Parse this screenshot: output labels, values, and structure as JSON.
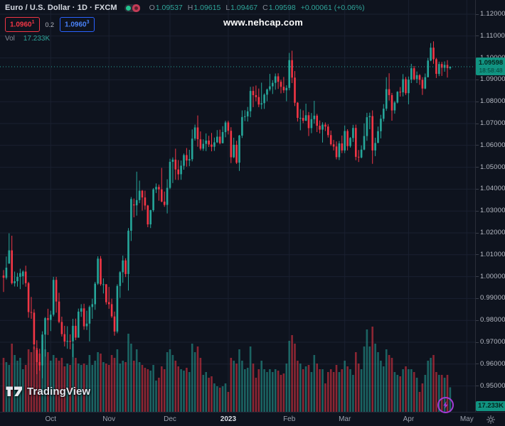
{
  "header": {
    "title": "Euro / U.S. Dollar · 1D · FXCM",
    "ohlc": {
      "o_label": "O",
      "o": "1.09537",
      "h_label": "H",
      "h": "1.09615",
      "l_label": "L",
      "l": "1.09467",
      "c_label": "C",
      "c": "1.09598",
      "change": "+0.00061 (+0.06%)"
    },
    "bid": {
      "value": "1.0960",
      "sup": "1"
    },
    "spread": "0.2",
    "ask": {
      "value": "1.0960",
      "sup": "3"
    },
    "vol_label": "Vol",
    "vol_value": "17.233K"
  },
  "watermark": "www.nehcap.com",
  "price_scale": {
    "last_price": "1.09598",
    "countdown": "18:58:48",
    "volume_badge": "17.233K"
  },
  "logo": {
    "text": "TradingView"
  },
  "colors": {
    "background": "#0e131e",
    "grid": "#1a2030",
    "up": "#26a69a",
    "down": "#f23645",
    "vol_up": "rgba(38,166,154,0.55)",
    "vol_down": "rgba(242,54,69,0.55)",
    "badge_bg": "#119482",
    "badge_text": "#04231c",
    "axis_text": "#b8bcc6",
    "bid": "#f23645",
    "ask": "#2962ff",
    "boost": "#a43bd6"
  },
  "chart_data": {
    "type": "candlestick",
    "symbol": "EUR/USD",
    "interval": "1D",
    "exchange": "FXCM",
    "price_axis": {
      "max": 1.12,
      "min": 0.95,
      "step": 0.01,
      "labels": [
        "1.12000",
        "1.11000",
        "1.10000",
        "1.09000",
        "1.08000",
        "1.07000",
        "1.06000",
        "1.05000",
        "1.04000",
        "1.03000",
        "1.02000",
        "1.01000",
        "1.00000",
        "0.99000",
        "0.98000",
        "0.97000",
        "0.96000",
        "0.95000"
      ]
    },
    "time_axis": {
      "months": [
        {
          "label": "Oct",
          "index": 17
        },
        {
          "label": "Nov",
          "index": 38
        },
        {
          "label": "Dec",
          "index": 60
        },
        {
          "label": "2023",
          "index": 81,
          "year": true
        },
        {
          "label": "Feb",
          "index": 103
        },
        {
          "label": "Mar",
          "index": 123
        },
        {
          "label": "Apr",
          "index": 146
        },
        {
          "label": "May",
          "index": 167
        }
      ]
    },
    "last_price": 1.09598,
    "volume_unit": "K",
    "candles": [
      [
        1.0005,
        1.003,
        0.993,
        0.9995,
        38
      ],
      [
        0.9995,
        1.0092,
        0.9987,
        1.0041,
        35
      ],
      [
        1.006,
        1.0198,
        1.0058,
        1.012,
        33
      ],
      [
        1.012,
        1.0187,
        0.9964,
        0.997,
        48
      ],
      [
        0.997,
        1.0023,
        0.9955,
        0.9979,
        40
      ],
      [
        0.9979,
        1.0017,
        0.9954,
        0.9999,
        36
      ],
      [
        0.9999,
        1.0036,
        0.9943,
        1.0016,
        38
      ],
      [
        1.0002,
        1.0029,
        0.9964,
        1.0023,
        30
      ],
      [
        1.0023,
        1.005,
        0.9954,
        0.997,
        33
      ],
      [
        0.997,
        0.9976,
        0.9812,
        0.9838,
        44
      ],
      [
        0.9838,
        0.9907,
        0.9807,
        0.9835,
        42
      ],
      [
        0.9835,
        0.9851,
        0.9667,
        0.969,
        46
      ],
      [
        0.9665,
        0.9709,
        0.9554,
        0.9609,
        45
      ],
      [
        0.9609,
        0.967,
        0.957,
        0.9594,
        41
      ],
      [
        0.9594,
        0.975,
        0.9535,
        0.9735,
        50
      ],
      [
        0.9735,
        0.9815,
        0.9634,
        0.981,
        44
      ],
      [
        0.981,
        0.9853,
        0.9733,
        0.9802,
        42
      ],
      [
        0.9802,
        0.9844,
        0.9751,
        0.9826,
        36
      ],
      [
        0.9826,
        0.9999,
        0.9818,
        0.9985,
        40
      ],
      [
        0.9985,
        0.9999,
        0.9835,
        0.9886,
        38
      ],
      [
        0.9886,
        0.9926,
        0.9787,
        0.9793,
        36
      ],
      [
        0.9793,
        0.9817,
        0.9726,
        0.9737,
        38
      ],
      [
        0.9737,
        0.9775,
        0.9681,
        0.9703,
        32
      ],
      [
        0.9703,
        0.9773,
        0.967,
        0.9706,
        34
      ],
      [
        0.9706,
        0.9736,
        0.9668,
        0.9704,
        33
      ],
      [
        0.9704,
        0.9807,
        0.9632,
        0.9775,
        48
      ],
      [
        0.9775,
        0.9808,
        0.9709,
        0.9721,
        38
      ],
      [
        0.9721,
        0.9854,
        0.9721,
        0.984,
        34
      ],
      [
        0.984,
        0.9874,
        0.9816,
        0.9855,
        33
      ],
      [
        0.9855,
        0.9876,
        0.9757,
        0.9773,
        34
      ],
      [
        0.9773,
        0.9844,
        0.9756,
        0.9785,
        33
      ],
      [
        0.9785,
        0.9868,
        0.9704,
        0.9861,
        40
      ],
      [
        0.9861,
        0.9899,
        0.9807,
        0.9874,
        33
      ],
      [
        0.9874,
        0.9976,
        0.9848,
        0.9968,
        36
      ],
      [
        0.9968,
        1.0093,
        0.9962,
        1.0082,
        42
      ],
      [
        1.0082,
        1.0094,
        0.9958,
        0.9965,
        41
      ],
      [
        0.9965,
        0.9992,
        0.9923,
        0.9965,
        35
      ],
      [
        0.9965,
        0.9966,
        0.9872,
        0.9883,
        34
      ],
      [
        0.9883,
        0.9953,
        0.9853,
        0.9874,
        33
      ],
      [
        0.9874,
        0.9899,
        0.9811,
        0.9818,
        40
      ],
      [
        0.9818,
        0.984,
        0.973,
        0.9749,
        38
      ],
      [
        0.9749,
        0.9965,
        0.9741,
        0.9957,
        44
      ],
      [
        0.9957,
        1.0025,
        0.9903,
        1.002,
        34
      ],
      [
        1.002,
        1.0096,
        0.9972,
        1.0074,
        36
      ],
      [
        1.0074,
        1.0084,
        0.9998,
        1.0012,
        35
      ],
      [
        1.0012,
        1.0222,
        0.9936,
        1.021,
        55
      ],
      [
        1.021,
        1.0364,
        1.0163,
        1.0355,
        48
      ],
      [
        1.033,
        1.0357,
        1.0271,
        1.0326,
        36
      ],
      [
        1.0326,
        1.048,
        1.0279,
        1.035,
        44
      ],
      [
        1.035,
        1.0439,
        1.0336,
        1.0393,
        35
      ],
      [
        1.0393,
        1.0396,
        1.0302,
        1.0362,
        33
      ],
      [
        1.0362,
        1.0393,
        1.0306,
        1.0325,
        31
      ],
      [
        1.0325,
        1.0328,
        1.0226,
        1.0239,
        30
      ],
      [
        1.0239,
        1.0306,
        1.0222,
        1.0304,
        29
      ],
      [
        1.0304,
        1.0405,
        1.0296,
        1.0399,
        33
      ],
      [
        1.0399,
        1.0426,
        1.0382,
        1.041,
        22
      ],
      [
        1.041,
        1.0421,
        1.0347,
        1.0399,
        24
      ],
      [
        1.0399,
        1.0497,
        1.034,
        1.0343,
        32
      ],
      [
        1.0343,
        1.0389,
        1.0319,
        1.0328,
        30
      ],
      [
        1.0328,
        1.0445,
        1.0289,
        1.0406,
        42
      ],
      [
        1.0406,
        1.0539,
        1.04,
        1.0525,
        44
      ],
      [
        1.0525,
        1.0545,
        1.0428,
        1.0535,
        40
      ],
      [
        1.0535,
        1.0585,
        1.0443,
        1.049,
        36
      ],
      [
        1.049,
        1.0533,
        1.0442,
        1.0468,
        32
      ],
      [
        1.0468,
        1.0531,
        1.0443,
        1.0507,
        30
      ],
      [
        1.0507,
        1.0563,
        1.0489,
        1.0556,
        29
      ],
      [
        1.0556,
        1.0588,
        1.0503,
        1.0531,
        31
      ],
      [
        1.0531,
        1.058,
        1.0505,
        1.0537,
        28
      ],
      [
        1.0537,
        1.0673,
        1.0527,
        1.0631,
        48
      ],
      [
        1.0631,
        1.0695,
        1.0622,
        1.0682,
        42
      ],
      [
        1.0682,
        1.0737,
        1.0594,
        1.0628,
        46
      ],
      [
        1.0628,
        1.0664,
        1.0577,
        1.0585,
        38
      ],
      [
        1.0585,
        1.0628,
        1.0575,
        1.0607,
        26
      ],
      [
        1.0607,
        1.0655,
        1.0574,
        1.0622,
        28
      ],
      [
        1.0622,
        1.0644,
        1.0593,
        1.0604,
        24
      ],
      [
        1.0604,
        1.0657,
        1.0573,
        1.0594,
        25
      ],
      [
        1.0594,
        1.0636,
        1.0575,
        1.0614,
        20
      ],
      [
        1.0614,
        1.067,
        1.0611,
        1.064,
        18
      ],
      [
        1.064,
        1.0672,
        1.0605,
        1.061,
        17
      ],
      [
        1.061,
        1.0688,
        1.0609,
        1.0661,
        18
      ],
      [
        1.0661,
        1.0713,
        1.0637,
        1.0705,
        20
      ],
      [
        1.0705,
        1.0713,
        1.065,
        1.0667,
        14
      ],
      [
        1.0667,
        1.0683,
        1.0519,
        1.0546,
        38
      ],
      [
        1.0546,
        1.0635,
        1.0542,
        1.0603,
        36
      ],
      [
        1.0603,
        1.0621,
        1.0515,
        1.0521,
        34
      ],
      [
        1.0521,
        1.0648,
        1.0483,
        1.0645,
        44
      ],
      [
        1.0645,
        1.076,
        1.0634,
        1.073,
        36
      ],
      [
        1.073,
        1.0761,
        1.0711,
        1.0733,
        30
      ],
      [
        1.0733,
        1.0776,
        1.0709,
        1.0756,
        31
      ],
      [
        1.0756,
        1.0868,
        1.0729,
        1.0849,
        46
      ],
      [
        1.0849,
        1.0869,
        1.0775,
        1.083,
        34
      ],
      [
        1.083,
        1.0874,
        1.0802,
        1.0821,
        24
      ],
      [
        1.0821,
        1.086,
        1.0775,
        1.0787,
        30
      ],
      [
        1.0787,
        1.0887,
        1.0766,
        1.0793,
        36
      ],
      [
        1.0793,
        1.0838,
        1.0767,
        1.0832,
        30
      ],
      [
        1.0832,
        1.086,
        1.0802,
        1.0856,
        28
      ],
      [
        1.0856,
        1.0927,
        1.0848,
        1.087,
        30
      ],
      [
        1.087,
        1.0898,
        1.0835,
        1.0886,
        28
      ],
      [
        1.0886,
        1.0929,
        1.0855,
        1.0916,
        30
      ],
      [
        1.0916,
        1.093,
        1.0858,
        1.0891,
        29
      ],
      [
        1.0891,
        1.09,
        1.0838,
        1.0868,
        26
      ],
      [
        1.0868,
        1.0913,
        1.084,
        1.0852,
        27
      ],
      [
        1.0852,
        1.0875,
        1.0802,
        1.0863,
        34
      ],
      [
        1.0863,
        1.1023,
        1.0852,
        1.099,
        50
      ],
      [
        1.099,
        1.1033,
        1.0885,
        1.091,
        54
      ],
      [
        1.091,
        1.094,
        1.078,
        1.0795,
        48
      ],
      [
        1.0795,
        1.0798,
        1.0709,
        1.0726,
        36
      ],
      [
        1.0726,
        1.0766,
        1.0669,
        1.0726,
        34
      ],
      [
        1.0726,
        1.076,
        1.0702,
        1.0713,
        30
      ],
      [
        1.0713,
        1.0791,
        1.0711,
        1.0738,
        32
      ],
      [
        1.0738,
        1.0753,
        1.0643,
        1.0679,
        33
      ],
      [
        1.0679,
        1.0748,
        1.0656,
        1.072,
        28
      ],
      [
        1.072,
        1.0804,
        1.07,
        1.0736,
        40
      ],
      [
        1.0736,
        1.0744,
        1.0661,
        1.069,
        34
      ],
      [
        1.069,
        1.0714,
        1.0655,
        1.0672,
        30
      ],
      [
        1.0672,
        1.0706,
        1.0613,
        1.0695,
        30
      ],
      [
        1.0695,
        1.0705,
        1.0666,
        1.0686,
        20
      ],
      [
        1.0686,
        1.0697,
        1.0636,
        1.0647,
        28
      ],
      [
        1.0647,
        1.0668,
        1.0598,
        1.0605,
        30
      ],
      [
        1.0605,
        1.0625,
        1.0577,
        1.0595,
        28
      ],
      [
        1.0595,
        1.0618,
        1.0536,
        1.0546,
        33
      ],
      [
        1.0546,
        1.062,
        1.0533,
        1.0609,
        28
      ],
      [
        1.0609,
        1.0645,
        1.0565,
        1.0577,
        30
      ],
      [
        1.0577,
        1.0691,
        1.0565,
        1.0666,
        36
      ],
      [
        1.0666,
        1.0674,
        1.0577,
        1.0597,
        32
      ],
      [
        1.0597,
        1.0638,
        1.059,
        1.0634,
        30
      ],
      [
        1.0634,
        1.0694,
        1.0616,
        1.068,
        26
      ],
      [
        1.068,
        1.0695,
        1.0532,
        1.0548,
        42
      ],
      [
        1.0548,
        1.0579,
        1.0524,
        1.0545,
        34
      ],
      [
        1.0545,
        1.06,
        1.0541,
        1.0581,
        30
      ],
      [
        1.0581,
        1.0701,
        1.0578,
        1.0643,
        46
      ],
      [
        1.0643,
        1.0749,
        1.0621,
        1.0729,
        58
      ],
      [
        1.0729,
        1.075,
        1.0674,
        1.0734,
        46
      ],
      [
        1.0734,
        1.076,
        1.0516,
        1.0577,
        60
      ],
      [
        1.0577,
        1.0635,
        1.0551,
        1.0611,
        48
      ],
      [
        1.0611,
        1.0686,
        1.0611,
        1.0665,
        42
      ],
      [
        1.0665,
        1.074,
        1.0632,
        1.0722,
        36
      ],
      [
        1.0722,
        1.0789,
        1.0709,
        1.0768,
        32
      ],
      [
        1.0768,
        1.0912,
        1.0758,
        1.0857,
        44
      ],
      [
        1.0857,
        1.093,
        1.0805,
        1.083,
        40
      ],
      [
        1.083,
        1.084,
        1.0713,
        1.076,
        38
      ],
      [
        1.076,
        1.0803,
        1.0745,
        1.0796,
        28
      ],
      [
        1.0796,
        1.0848,
        1.0792,
        1.0845,
        26
      ],
      [
        1.0845,
        1.0867,
        1.0823,
        1.0843,
        25
      ],
      [
        1.0843,
        1.0926,
        1.0824,
        1.0903,
        30
      ],
      [
        1.0903,
        1.0913,
        1.0831,
        1.0839,
        32
      ],
      [
        1.0839,
        1.0915,
        1.0788,
        1.0901,
        30
      ],
      [
        1.0901,
        1.0973,
        1.0885,
        1.0953,
        30
      ],
      [
        1.0953,
        1.0963,
        1.0898,
        1.0903,
        28
      ],
      [
        1.0903,
        1.0938,
        1.0885,
        1.0921,
        24
      ],
      [
        1.0921,
        1.0926,
        1.0877,
        1.09,
        14
      ],
      [
        1.09,
        1.0912,
        1.0831,
        1.086,
        20
      ],
      [
        1.086,
        1.0929,
        1.0857,
        1.0912,
        26
      ],
      [
        1.0912,
        1.1,
        1.0911,
        1.0988,
        36
      ],
      [
        1.0988,
        1.1068,
        1.0985,
        1.1047,
        38
      ],
      [
        1.1047,
        1.1076,
        1.0973,
        1.0994,
        40
      ],
      [
        1.0994,
        1.1,
        1.0908,
        1.0927,
        28
      ],
      [
        1.0927,
        1.0983,
        1.0917,
        1.0972,
        26
      ],
      [
        1.0972,
        1.0982,
        1.0918,
        1.0955,
        26
      ],
      [
        1.0955,
        1.0984,
        1.0937,
        1.0968,
        24
      ],
      [
        1.0968,
        1.099,
        1.091,
        1.09537,
        26
      ],
      [
        1.09537,
        1.09615,
        1.09467,
        1.09598,
        17.233
      ]
    ]
  }
}
